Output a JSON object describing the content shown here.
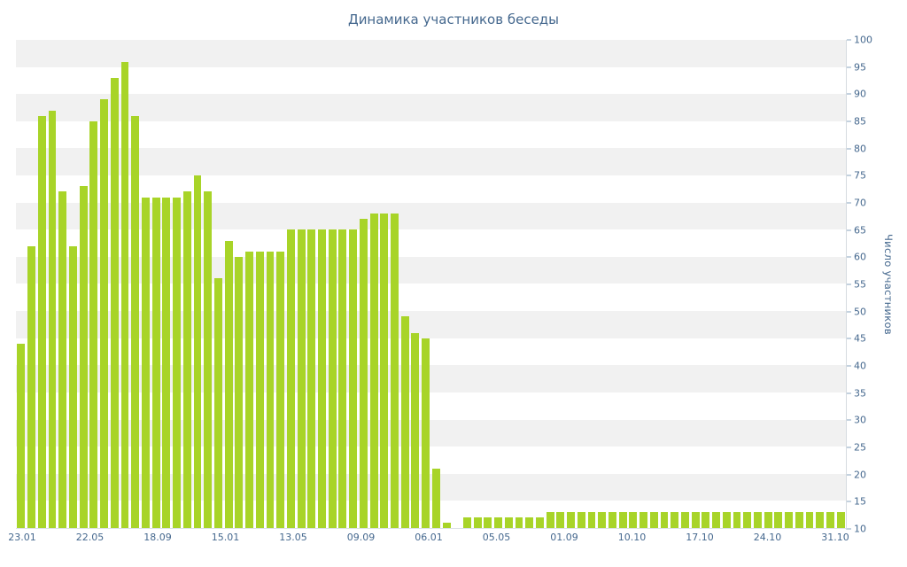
{
  "title": "Динамика участников беседы",
  "colors": {
    "bar": "#a8d428",
    "band": "#f1f1f1",
    "text": "#45688e",
    "axis_line": "#d6dbe0",
    "tick_mark": "#8aa4bf"
  },
  "chart_data": {
    "type": "bar",
    "title": "Динамика участников беседы",
    "xlabel": "",
    "ylabel": "Число участников",
    "ylim": [
      10,
      100
    ],
    "ytick_step": 5,
    "grid": "horizontal-alternating-bands",
    "legend": "none",
    "y_axis_position": "right",
    "x_tick_labels": [
      "23.01",
      "22.05",
      "18.09",
      "15.01",
      "13.05",
      "09.09",
      "06.01",
      "05.05",
      "01.09",
      "10.10",
      "17.10",
      "24.10",
      "31.10"
    ],
    "values": [
      44,
      62,
      86,
      87,
      72,
      62,
      73,
      85,
      89,
      93,
      96,
      86,
      71,
      71,
      71,
      71,
      72,
      75,
      72,
      56,
      63,
      60,
      61,
      61,
      61,
      61,
      65,
      65,
      65,
      65,
      65,
      65,
      65,
      67,
      68,
      68,
      68,
      49,
      46,
      45,
      21,
      11,
      10,
      12,
      12,
      12,
      12,
      12,
      12,
      12,
      12,
      13,
      13,
      13,
      13,
      13,
      13,
      13,
      13,
      13,
      13,
      13,
      13,
      13,
      13,
      13,
      13,
      13,
      13,
      13,
      13,
      13,
      13,
      13,
      13,
      13,
      13,
      13,
      13,
      13
    ]
  }
}
